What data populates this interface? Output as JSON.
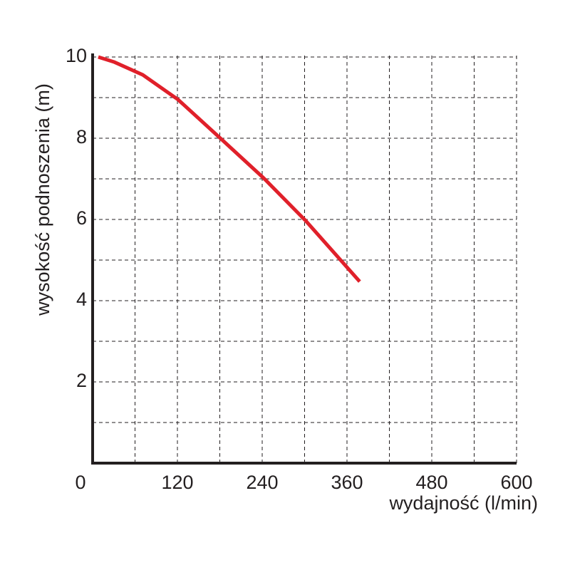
{
  "chart_data": {
    "type": "line",
    "x_label": "wydajność (l/min)",
    "y_label": "wysokość podnoszenia (m)",
    "xlim": [
      0,
      600
    ],
    "ylim": [
      0,
      10
    ],
    "xticks": [
      0,
      120,
      240,
      360,
      480,
      600
    ],
    "yticks": [
      2,
      4,
      6,
      8,
      10
    ],
    "xgrid": [
      60,
      120,
      180,
      240,
      300,
      360,
      420,
      480,
      540,
      600
    ],
    "ygrid": [
      1,
      2,
      3,
      4,
      5,
      6,
      7,
      8,
      9,
      10
    ],
    "grid": true,
    "series": [
      {
        "color": "#e0202a",
        "x": [
          8,
          30,
          71,
          121,
          182,
          242,
          302,
          378
        ],
        "values": [
          10,
          9.88,
          9.56,
          8.95,
          7.98,
          7.02,
          5.96,
          4.47
        ]
      }
    ]
  }
}
